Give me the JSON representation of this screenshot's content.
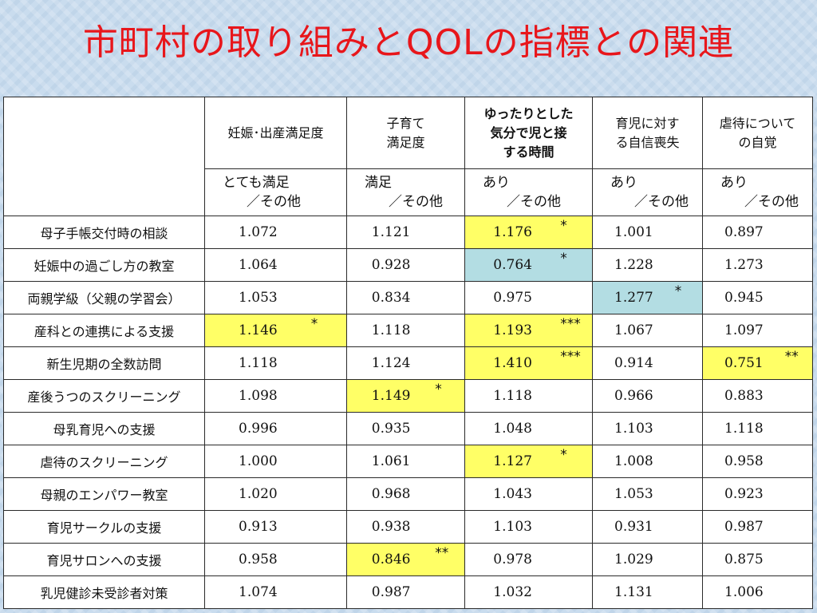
{
  "title": "市町村の取り組みとQOLの指標との関連",
  "colors": {
    "title": "#e8161b",
    "highlight_yellow": "#ffff66",
    "highlight_blue": "#b3dde3"
  },
  "columns": [
    {
      "header": [
        "妊娠･出産満足度"
      ],
      "sub": [
        "とても満足",
        "／その他"
      ]
    },
    {
      "header": [
        "子育て",
        "満足度"
      ],
      "sub": [
        "満足",
        "／その他"
      ]
    },
    {
      "header": [
        "ゆったりとした",
        "気分で児と接",
        "する時間"
      ],
      "sub": [
        "あり",
        "／その他"
      ],
      "bold": true
    },
    {
      "header": [
        "育児に対す",
        "る自信喪失"
      ],
      "sub": [
        "あり",
        "／その他"
      ]
    },
    {
      "header": [
        "虐待について",
        "の自覚"
      ],
      "sub": [
        "あり",
        "／その他"
      ]
    }
  ],
  "rows": [
    {
      "label": "母子手帳交付時の相談",
      "cells": [
        {
          "v": "1.072"
        },
        {
          "v": "1.121"
        },
        {
          "v": "1.176",
          "sig": "*",
          "hl": "yellow"
        },
        {
          "v": "1.001"
        },
        {
          "v": "0.897"
        }
      ]
    },
    {
      "label": "妊娠中の過ごし方の教室",
      "cells": [
        {
          "v": "1.064"
        },
        {
          "v": "0.928"
        },
        {
          "v": "0.764",
          "sig": "*",
          "hl": "blue"
        },
        {
          "v": "1.228"
        },
        {
          "v": "1.273"
        }
      ]
    },
    {
      "label": "両親学級（父親の学習会）",
      "cells": [
        {
          "v": "1.053"
        },
        {
          "v": "0.834"
        },
        {
          "v": "0.975"
        },
        {
          "v": "1.277",
          "sig": "*",
          "hl": "blue"
        },
        {
          "v": "0.945"
        }
      ]
    },
    {
      "label": "産科との連携による支援",
      "cells": [
        {
          "v": "1.146",
          "sig": "*",
          "hl": "yellow"
        },
        {
          "v": "1.118"
        },
        {
          "v": "1.193",
          "sig": "***",
          "hl": "yellow"
        },
        {
          "v": "1.067"
        },
        {
          "v": "1.097"
        }
      ]
    },
    {
      "label": "新生児期の全数訪問",
      "cells": [
        {
          "v": "1.118"
        },
        {
          "v": "1.124"
        },
        {
          "v": "1.410",
          "sig": "***",
          "hl": "yellow"
        },
        {
          "v": "0.914"
        },
        {
          "v": "0.751",
          "sig": "**",
          "hl": "yellow"
        }
      ]
    },
    {
      "label": "産後うつのスクリーニング",
      "cells": [
        {
          "v": "1.098"
        },
        {
          "v": "1.149",
          "sig": "*",
          "hl": "yellow"
        },
        {
          "v": "1.118"
        },
        {
          "v": "0.966"
        },
        {
          "v": "0.883"
        }
      ]
    },
    {
      "label": "母乳育児への支援",
      "cells": [
        {
          "v": "0.996"
        },
        {
          "v": "0.935"
        },
        {
          "v": "1.048"
        },
        {
          "v": "1.103"
        },
        {
          "v": "1.118"
        }
      ]
    },
    {
      "label": "虐待のスクリーニング",
      "cells": [
        {
          "v": "1.000"
        },
        {
          "v": "1.061"
        },
        {
          "v": "1.127",
          "sig": "*",
          "hl": "yellow"
        },
        {
          "v": "1.008"
        },
        {
          "v": "0.958"
        }
      ]
    },
    {
      "label": "母親のエンパワー教室",
      "cells": [
        {
          "v": "1.020"
        },
        {
          "v": "0.968"
        },
        {
          "v": "1.043"
        },
        {
          "v": "1.053"
        },
        {
          "v": "0.923"
        }
      ]
    },
    {
      "label": "育児サークルの支援",
      "cells": [
        {
          "v": "0.913"
        },
        {
          "v": "0.938"
        },
        {
          "v": "1.103"
        },
        {
          "v": "0.931"
        },
        {
          "v": "0.987"
        }
      ]
    },
    {
      "label": "育児サロンへの支援",
      "cells": [
        {
          "v": "0.958"
        },
        {
          "v": "0.846",
          "sig": "**",
          "hl": "yellow"
        },
        {
          "v": "0.978"
        },
        {
          "v": "1.029"
        },
        {
          "v": "0.875"
        }
      ]
    },
    {
      "label": "乳児健診未受診者対策",
      "cells": [
        {
          "v": "1.074"
        },
        {
          "v": "0.987"
        },
        {
          "v": "1.032"
        },
        {
          "v": "1.131"
        },
        {
          "v": "1.006"
        }
      ]
    }
  ]
}
